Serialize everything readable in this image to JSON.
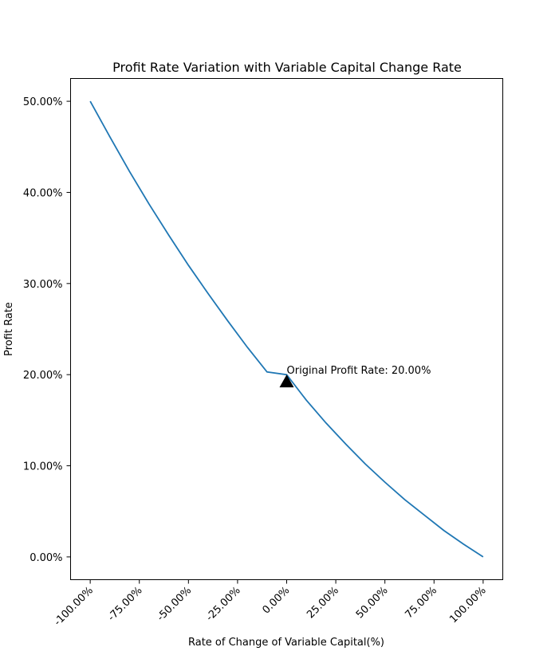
{
  "chart_data": {
    "type": "line",
    "title": "Profit Rate Variation with Variable Capital Change Rate",
    "xlabel": "Rate of Change of Variable Capital(%)",
    "ylabel": "Profit Rate",
    "xlim": [
      -1.1,
      1.1
    ],
    "ylim": [
      -0.025,
      0.525
    ],
    "x_ticks": [
      {
        "value": -1.0,
        "label": "-100.00%"
      },
      {
        "value": -0.75,
        "label": "-75.00%"
      },
      {
        "value": -0.5,
        "label": "-50.00%"
      },
      {
        "value": -0.25,
        "label": "-25.00%"
      },
      {
        "value": 0.0,
        "label": "0.00%"
      },
      {
        "value": 0.25,
        "label": "25.00%"
      },
      {
        "value": 0.5,
        "label": "50.00%"
      },
      {
        "value": 0.75,
        "label": "75.00%"
      },
      {
        "value": 1.0,
        "label": "100.00%"
      }
    ],
    "y_ticks": [
      {
        "value": 0.0,
        "label": "0.00%"
      },
      {
        "value": 0.1,
        "label": "10.00%"
      },
      {
        "value": 0.2,
        "label": "20.00%"
      },
      {
        "value": 0.3,
        "label": "30.00%"
      },
      {
        "value": 0.4,
        "label": "40.00%"
      },
      {
        "value": 0.5,
        "label": "50.00%"
      }
    ],
    "grid": false,
    "series": [
      {
        "color": "#1f77b4",
        "x": [
          -1.0,
          -0.9,
          -0.8,
          -0.7,
          -0.6,
          -0.5,
          -0.4,
          -0.3,
          -0.2,
          -0.1,
          0.0,
          0.1,
          0.2,
          0.3,
          0.4,
          0.5,
          0.6,
          0.7,
          0.8,
          0.9,
          1.0
        ],
        "y": [
          0.5,
          0.461,
          0.423,
          0.387,
          0.353,
          0.32,
          0.289,
          0.259,
          0.23,
          0.203,
          0.2,
          0.172,
          0.147,
          0.124,
          0.102,
          0.082,
          0.063,
          0.046,
          0.029,
          0.014,
          0.0
        ]
      }
    ],
    "annotation": {
      "x": 0.0,
      "y": 0.2,
      "text": "Original Profit Rate: 20.00%",
      "marker": "triangle-up",
      "marker_color": "#000000"
    }
  }
}
